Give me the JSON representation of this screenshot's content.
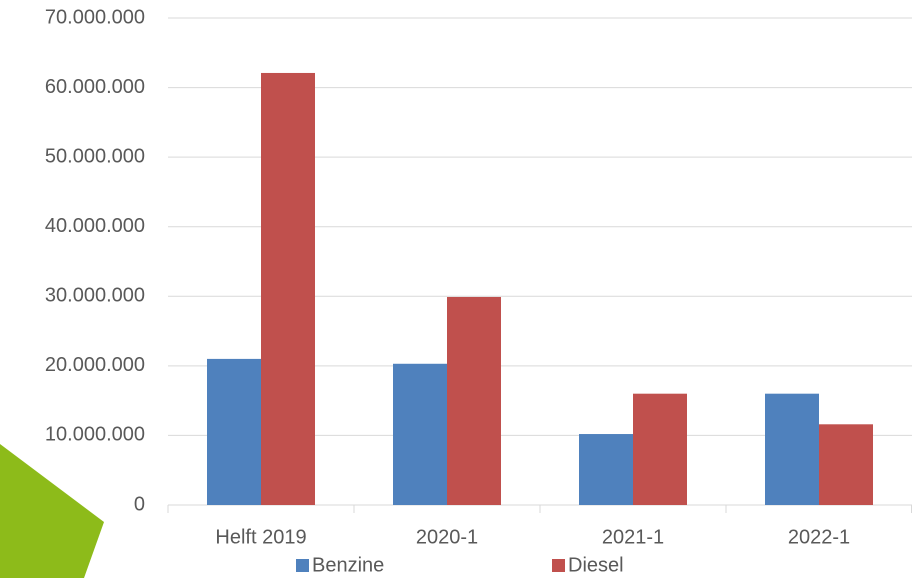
{
  "chart_data": {
    "type": "bar",
    "categories": [
      "Helft 2019",
      "2020-1",
      "2021-1",
      "2022-1"
    ],
    "series": [
      {
        "name": "Benzine",
        "color": "#4f81bd",
        "values": [
          21000000,
          20300000,
          10200000,
          16000000
        ]
      },
      {
        "name": "Diesel",
        "color": "#c0504d",
        "values": [
          62100000,
          29900000,
          16000000,
          11600000
        ]
      }
    ],
    "ylim": [
      0,
      70000000
    ],
    "yticks": [
      {
        "value": 0,
        "label": "0"
      },
      {
        "value": 10000000,
        "label": "10.000.000"
      },
      {
        "value": 20000000,
        "label": "20.000.000"
      },
      {
        "value": 30000000,
        "label": "30.000.000"
      },
      {
        "value": 40000000,
        "label": "40.000.000"
      },
      {
        "value": 50000000,
        "label": "50.000.000"
      },
      {
        "value": 60000000,
        "label": "60.000.000"
      },
      {
        "value": 70000000,
        "label": "70.000.000"
      }
    ],
    "grid": true,
    "legend": "bottom"
  }
}
